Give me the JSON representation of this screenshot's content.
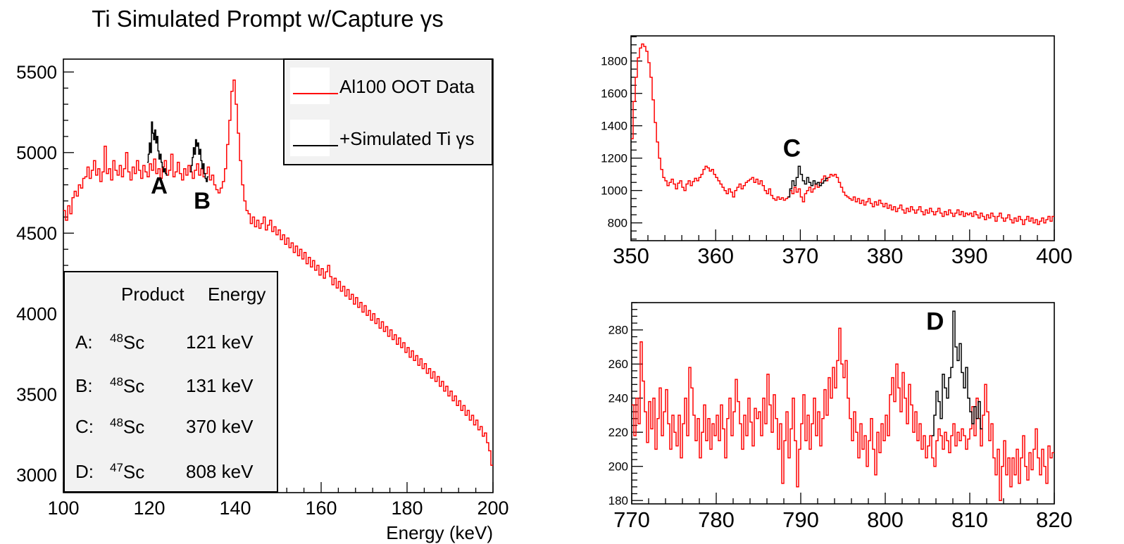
{
  "title": "Ti Simulated Prompt w/Capture  γs",
  "colors": {
    "data_red": "#ff0000",
    "sim_black": "#000000",
    "panel_bg": "#f2f2f2",
    "background": "#ffffff"
  },
  "legend": {
    "items": [
      {
        "label": "Al100 OOT Data",
        "color": "#ff0000"
      },
      {
        "label": "+Simulated Ti γs",
        "color": "#000000"
      }
    ]
  },
  "peak_table": {
    "headers": [
      "Product",
      "Energy"
    ],
    "rows": [
      {
        "key": "A:",
        "mass": "48",
        "symbol": "Sc",
        "energy": "121 keV"
      },
      {
        "key": "B:",
        "mass": "48",
        "symbol": "Sc",
        "energy": "131 keV"
      },
      {
        "key": "C:",
        "mass": "48",
        "symbol": "Sc",
        "energy": "370 keV"
      },
      {
        "key": "D:",
        "mass": "47",
        "symbol": "Sc",
        "energy": "808 keV"
      }
    ]
  },
  "chart_data": [
    {
      "name": "main-spectrum",
      "type": "line",
      "style": "histogram-step",
      "title": "Ti Simulated Prompt w/Capture  γs",
      "xlabel": "Energy (keV)",
      "ylabel": "",
      "xlim": [
        100,
        200
      ],
      "ylim": [
        2890,
        5580
      ],
      "xticks": [
        100,
        120,
        140,
        160,
        180,
        200
      ],
      "yticks": [
        3000,
        3500,
        4000,
        4500,
        5000,
        5500
      ],
      "xminor": 4,
      "yminor": 100,
      "grid": false,
      "legend_position": "top-right",
      "annotations": [
        {
          "text": "A",
          "x": 122.3,
          "y": 4785
        },
        {
          "text": "B",
          "x": 132.3,
          "y": 4690
        }
      ],
      "series": [
        {
          "name": "Al100 OOT Data",
          "color": "#ff0000",
          "x_start": 100,
          "bin_width": 0.5,
          "values": [
            4640,
            4580,
            4670,
            4620,
            4720,
            4760,
            4730,
            4800,
            4780,
            4840,
            4850,
            4910,
            4840,
            4890,
            4950,
            4860,
            4900,
            4820,
            4880,
            5040,
            4870,
            4900,
            4830,
            4950,
            4890,
            4860,
            4920,
            4850,
            4900,
            5000,
            4880,
            4830,
            4910,
            4870,
            4950,
            4890,
            4840,
            4920,
            4880,
            4850,
            4930,
            4890,
            4960,
            4870,
            4900,
            4840,
            4910,
            4950,
            4860,
            4890,
            4990,
            4850,
            4880,
            4940,
            4870,
            4830,
            4900,
            4860,
            4920,
            4880,
            4840,
            4890,
            4930,
            4860,
            4900,
            4850,
            4870,
            4910,
            4830,
            4860,
            4800,
            4770,
            4750,
            4780,
            4820,
            4900,
            5050,
            5200,
            5380,
            5450,
            5300,
            5120,
            4950,
            4800,
            4700,
            4640,
            4620,
            4560,
            4600,
            4540,
            4580,
            4530,
            4560,
            4600,
            4520,
            4550,
            4580,
            4510,
            4540,
            4490,
            4520,
            4460,
            4490,
            4430,
            4470,
            4410,
            4440,
            4380,
            4420,
            4360,
            4400,
            4340,
            4380,
            4310,
            4350,
            4290,
            4330,
            4270,
            4300,
            4240,
            4280,
            4220,
            4260,
            4300,
            4230,
            4180,
            4220,
            4160,
            4200,
            4140,
            4170,
            4110,
            4150,
            4090,
            4120,
            4060,
            4100,
            4040,
            4070,
            4010,
            4050,
            3990,
            4020,
            3960,
            4000,
            3940,
            3970,
            3910,
            3950,
            3890,
            3920,
            3860,
            3900,
            3840,
            3870,
            3810,
            3850,
            3790,
            3820,
            3760,
            3790,
            3730,
            3770,
            3710,
            3740,
            3680,
            3720,
            3660,
            3690,
            3630,
            3660,
            3600,
            3640,
            3580,
            3610,
            3550,
            3580,
            3520,
            3550,
            3490,
            3520,
            3460,
            3490,
            3430,
            3460,
            3400,
            3430,
            3370,
            3400,
            3340,
            3370,
            3310,
            3340,
            3280,
            3300,
            3240,
            3260,
            3200,
            3150,
            3060
          ]
        },
        {
          "name": "+Simulated Ti γs (peak A)",
          "color": "#000000",
          "x_start": 119.5,
          "bin_width": 0.25,
          "values": [
            4940,
            4990,
            5060,
            5000,
            5190,
            5120,
            5080,
            5140,
            5060,
            5100,
            5010,
            4960,
            4990,
            4940,
            4910,
            4880,
            4900,
            4870,
            4860
          ]
        },
        {
          "name": "+Simulated Ti γs (peak B)",
          "color": "#000000",
          "x_start": 129.5,
          "bin_width": 0.25,
          "values": [
            4880,
            4920,
            4970,
            5030,
            4990,
            5080,
            5040,
            5060,
            4990,
            5020,
            4950,
            4900,
            4930,
            4870,
            4840,
            4820,
            4850
          ]
        }
      ]
    },
    {
      "name": "zoom-region-C",
      "type": "line",
      "style": "histogram-step",
      "xlabel": "",
      "xlim": [
        350,
        400
      ],
      "ylim": [
        690,
        1955
      ],
      "xticks": [
        350,
        360,
        370,
        380,
        390,
        400
      ],
      "yticks": [
        800,
        1000,
        1200,
        1400,
        1600,
        1800
      ],
      "xminor": 2,
      "yminor": 50,
      "grid": false,
      "annotations": [
        {
          "text": "C",
          "x": 369.0,
          "y": 1250
        }
      ],
      "series": [
        {
          "name": "Al100 OOT Data",
          "color": "#ff0000",
          "x_start": 350,
          "bin_width": 0.25,
          "values": [
            1320,
            1550,
            1700,
            1820,
            1880,
            1905,
            1890,
            1860,
            1790,
            1700,
            1560,
            1420,
            1300,
            1200,
            1130,
            1080,
            1060,
            1030,
            1050,
            1070,
            1040,
            1010,
            1045,
            1060,
            1020,
            1000,
            1040,
            1060,
            1030,
            1055,
            1075,
            1060,
            1080,
            1100,
            1130,
            1150,
            1140,
            1120,
            1130,
            1100,
            1080,
            1060,
            1040,
            1020,
            1000,
            980,
            1010,
            990,
            960,
            1000,
            1020,
            1040,
            1010,
            1030,
            1050,
            1060,
            1070,
            1080,
            1050,
            1070,
            1040,
            1060,
            1030,
            1000,
            980,
            1010,
            970,
            950,
            940,
            960,
            945,
            955,
            940,
            950,
            960,
            1000,
            980,
            1020,
            990,
            1010,
            960,
            930,
            980,
            1000,
            1020,
            990,
            1010,
            1040,
            1020,
            1050,
            1070,
            1090,
            1060,
            1080,
            1100,
            1090,
            1100,
            1080,
            1050,
            1020,
            990,
            970,
            960,
            950,
            940,
            960,
            930,
            950,
            920,
            940,
            910,
            930,
            950,
            920,
            900,
            930,
            910,
            940,
            920,
            900,
            920,
            890,
            910,
            880,
            900,
            870,
            890,
            910,
            880,
            860,
            890,
            870,
            900,
            880,
            860,
            880,
            900,
            870,
            850,
            880,
            860,
            890,
            870,
            850,
            870,
            890,
            860,
            840,
            870,
            850,
            880,
            860,
            840,
            860,
            880,
            850,
            870,
            840,
            860,
            850,
            860,
            840,
            870,
            850,
            830,
            860,
            840,
            820,
            850,
            830,
            860,
            840,
            810,
            840,
            860,
            830,
            810,
            830,
            850,
            820,
            800,
            830,
            810,
            840,
            820,
            790,
            820,
            840,
            810,
            830,
            800,
            820,
            790,
            810,
            830,
            800,
            820,
            840,
            810,
            840
          ]
        },
        {
          "name": "+Simulated Ti γs (peak C)",
          "color": "#000000",
          "x_start": 368.5,
          "bin_width": 0.25,
          "values": [
            960,
            1010,
            1060,
            1030,
            1080,
            1150,
            1100,
            1060,
            1040,
            1080,
            1050,
            1030,
            1060,
            1040,
            1050,
            1030,
            1045,
            1060,
            1075
          ]
        }
      ]
    },
    {
      "name": "zoom-region-D",
      "type": "line",
      "style": "histogram-step",
      "xlabel": "",
      "xlim": [
        770,
        820
      ],
      "ylim": [
        178,
        296
      ],
      "xticks": [
        770,
        780,
        790,
        800,
        810,
        820
      ],
      "yticks": [
        180,
        200,
        220,
        240,
        260,
        280
      ],
      "xminor": 2,
      "yminor": 4,
      "grid": false,
      "annotations": [
        {
          "text": "D",
          "x": 805.9,
          "y": 284
        }
      ],
      "series": [
        {
          "name": "Al100 OOT Data",
          "color": "#ff0000",
          "x_start": 770,
          "bin_width": 0.25,
          "values": [
            236,
            218,
            240,
            225,
            273,
            250,
            232,
            214,
            238,
            222,
            240,
            210,
            228,
            246,
            218,
            232,
            245,
            225,
            210,
            230,
            220,
            212,
            230,
            205,
            225,
            240,
            218,
            258,
            246,
            230,
            215,
            228,
            205,
            220,
            236,
            215,
            228,
            210,
            225,
            218,
            230,
            215,
            236,
            222,
            205,
            228,
            240,
            218,
            232,
            251,
            238,
            225,
            210,
            230,
            218,
            240,
            226,
            212,
            234,
            228,
            232,
            218,
            240,
            225,
            254,
            236,
            220,
            242,
            228,
            210,
            225,
            190,
            215,
            232,
            205,
            222,
            240,
            215,
            188,
            210,
            225,
            242,
            215,
            230,
            210,
            225,
            240,
            218,
            232,
            212,
            228,
            245,
            230,
            252,
            240,
            258,
            246,
            262,
            281,
            260,
            252,
            262,
            240,
            228,
            215,
            232,
            220,
            205,
            225,
            210,
            218,
            200,
            215,
            228,
            210,
            195,
            220,
            208,
            225,
            215,
            230,
            218,
            242,
            252,
            238,
            260,
            246,
            232,
            255,
            240,
            225,
            248,
            236,
            220,
            232,
            215,
            225,
            210,
            218,
            205,
            212,
            218,
            205,
            200,
            215,
            222,
            218,
            210,
            220,
            215,
            208,
            218,
            225,
            212,
            220,
            215,
            222,
            218,
            210,
            216,
            222,
            235,
            218,
            240,
            228,
            212,
            230,
            248,
            232,
            215,
            225,
            205,
            195,
            210,
            180,
            200,
            215,
            195,
            205,
            188,
            205,
            195,
            210,
            190,
            205,
            218,
            200,
            192,
            208,
            198,
            210,
            222,
            205,
            195,
            210,
            200,
            190,
            212,
            205,
            208
          ]
        },
        {
          "name": "+Simulated Ti γs (peak D)",
          "color": "#000000",
          "x_start": 805.5,
          "bin_width": 0.25,
          "values": [
            218,
            230,
            244,
            238,
            228,
            254,
            246,
            240,
            252,
            258,
            291,
            270,
            262,
            272,
            255,
            246,
            258,
            240,
            232,
            225,
            235,
            228,
            238,
            222
          ]
        }
      ]
    }
  ]
}
